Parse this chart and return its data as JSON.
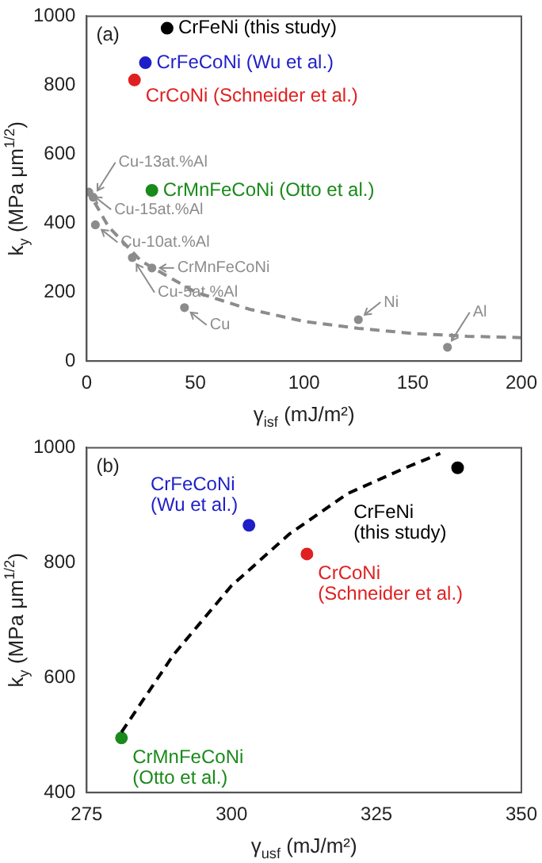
{
  "chart_data": [
    {
      "type": "scatter",
      "xlabel": "γ$_{isf}$ (mJ/m²)",
      "ylabel": "k$_{y}$ (MPa μm$^{1/2}$)",
      "xlim": [
        0,
        200
      ],
      "ylim": [
        0,
        1000
      ],
      "xticks": [
        0,
        50,
        100,
        150,
        200
      ],
      "yticks": [
        0,
        200,
        400,
        600,
        800,
        1000
      ],
      "marker": "circle",
      "line_style": "dashed",
      "legend": false,
      "grid": false,
      "annotations": [
        "(a)",
        {
          "text": "Cu-15at.%Al",
          "x": 1,
          "y": 490
        },
        {
          "text": "Cu-13at.%Al",
          "x": 3,
          "y": 475
        },
        {
          "text": "Cu-10at.%Al",
          "x": 4,
          "y": 395
        },
        {
          "text": "Cu-5at.%Al",
          "x": 21,
          "y": 300
        },
        {
          "text": "CrMnFeCoNi",
          "x": 30,
          "y": 270
        },
        {
          "text": "Cu",
          "x": 45,
          "y": 155
        },
        {
          "text": "Ni",
          "x": 125,
          "y": 120
        },
        {
          "text": "Al",
          "x": 166,
          "y": 40
        }
      ],
      "series": [
        {
          "type": "line",
          "marker": "none",
          "color": "#8c8c8c",
          "x": [
            0,
            10,
            25,
            50,
            75,
            100,
            125,
            150,
            175,
            200
          ],
          "values": [
            500,
            390,
            290,
            200,
            150,
            115,
            95,
            80,
            72,
            68
          ]
        },
        {
          "color": "#8c8c8c",
          "x": [
            1,
            3,
            4,
            21,
            30,
            45,
            125,
            166
          ],
          "values": [
            490,
            475,
            395,
            300,
            270,
            155,
            120,
            40
          ]
        },
        {
          "name": "CrFeNi (this study)",
          "color": "#000000",
          "x": [
            37
          ],
          "values": [
            965
          ]
        },
        {
          "name": "CrFeCoNi (Wu et al.)",
          "color": "#1f1fc8",
          "x": [
            27
          ],
          "values": [
            865
          ]
        },
        {
          "name": "CrCoNi (Schneider et al.)",
          "color": "#e02020",
          "x": [
            22
          ],
          "values": [
            815
          ]
        },
        {
          "name": "CrMnFeCoNi (Otto et al.)",
          "color": "#1a8a1a",
          "x": [
            30
          ],
          "values": [
            495
          ]
        }
      ]
    },
    {
      "type": "scatter",
      "xlabel": "γ$_{usf}$ (mJ/m²)",
      "ylabel": "k$_{y}$ (MPa μm$^{1/2}$)",
      "xlim": [
        275,
        350
      ],
      "ylim": [
        400,
        1000
      ],
      "xticks": [
        275,
        300,
        325,
        350
      ],
      "yticks": [
        400,
        600,
        800,
        1000
      ],
      "marker": "circle",
      "line_style": "dashed",
      "legend": false,
      "grid": false,
      "annotations": [
        "(b)"
      ],
      "series": [
        {
          "type": "line",
          "marker": "none",
          "color": "#000000",
          "x": [
            281,
            290,
            300,
            310,
            320,
            330,
            336
          ],
          "values": [
            505,
            640,
            760,
            850,
            920,
            965,
            990
          ]
        },
        {
          "name": "CrFeNi\n(this study)",
          "color": "#000000",
          "x": [
            339
          ],
          "values": [
            965
          ]
        },
        {
          "name": "CrFeCoNi\n(Wu et al.)",
          "color": "#1f1fc8",
          "x": [
            303
          ],
          "values": [
            865
          ]
        },
        {
          "name": "CrCoNi\n(Schneider et al.)",
          "color": "#e02020",
          "x": [
            313
          ],
          "values": [
            815
          ]
        },
        {
          "name": "CrMnFeCoNi\n(Otto et al.)",
          "color": "#1a8a1a",
          "x": [
            281
          ],
          "values": [
            495
          ]
        }
      ]
    }
  ]
}
